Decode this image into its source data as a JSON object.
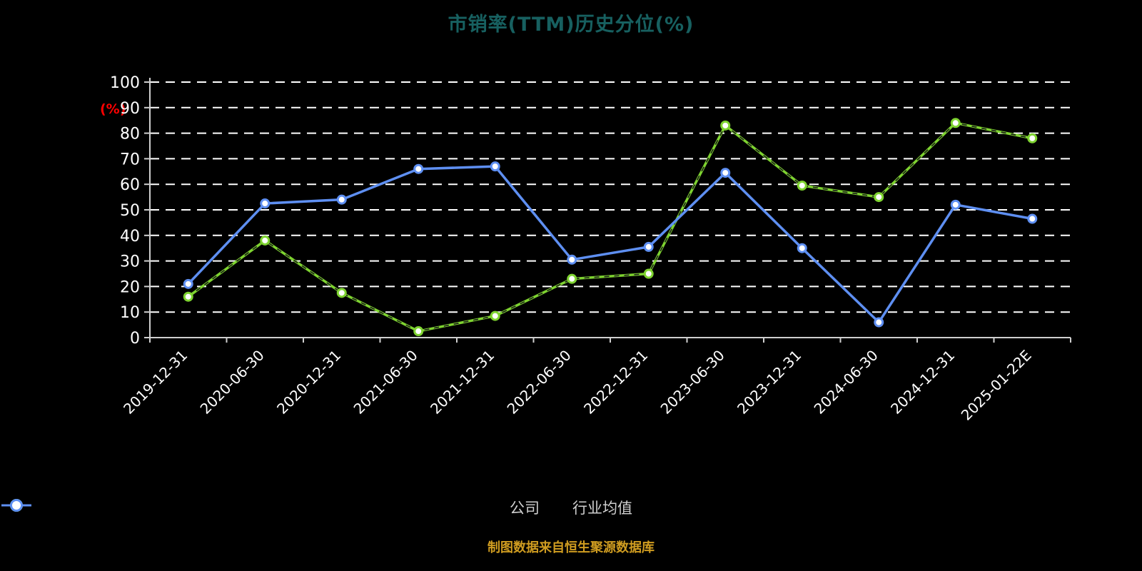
{
  "title": "市销率(TTM)历史分位(%)",
  "y_axis_label": "(%)",
  "footer_note": "制图数据来自恒生聚源数据库",
  "colors": {
    "background": "#000000",
    "title": "#176060",
    "y_unit": "#ff0000",
    "axis_text": "#ffffff",
    "axis_line": "#cfcfcf",
    "grid": "#ffffff",
    "legend_text": "#cfcfcf",
    "footer": "#cf9c20"
  },
  "chart_data": {
    "type": "line",
    "title": "市销率(TTM)历史分位(%)",
    "xlabel": "",
    "ylabel": "(%)",
    "ylim": [
      0,
      100
    ],
    "y_tick_step": 10,
    "y_ticks": [
      0,
      10,
      20,
      30,
      40,
      50,
      60,
      70,
      80,
      90,
      100
    ],
    "grid": true,
    "grid_style": "dashed",
    "legend_position": "bottom",
    "categories": [
      "2019-12-31",
      "2020-06-30",
      "2020-12-31",
      "2021-06-30",
      "2021-12-31",
      "2022-06-30",
      "2022-12-31",
      "2023-06-30",
      "2023-12-31",
      "2024-06-30",
      "2024-12-31",
      "2025-01-22E"
    ],
    "series": [
      {
        "name": "公司",
        "color": "#7ed330",
        "marker": "circle",
        "dashed_overlay": true,
        "values": [
          16,
          38,
          17.5,
          2.5,
          8.5,
          23,
          25,
          83,
          59.5,
          55,
          84,
          78
        ]
      },
      {
        "name": "行业均值",
        "color": "#5e8ff2",
        "marker": "circle",
        "dashed_overlay": false,
        "values": [
          21,
          52.5,
          54,
          66,
          67,
          30.5,
          35.5,
          64.5,
          35,
          6,
          52,
          46.5
        ]
      }
    ]
  }
}
